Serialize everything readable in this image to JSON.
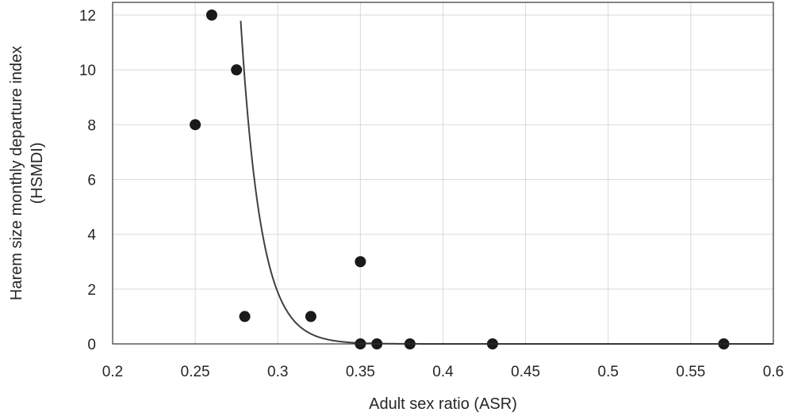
{
  "chart_data": {
    "type": "scatter",
    "title": "",
    "xlabel": "Adult sex ratio (ASR)",
    "ylabel_lines": [
      "Harem size monthly departure index",
      "(HSMDI)"
    ],
    "xlim": [
      0.2,
      0.6
    ],
    "ylim": [
      0,
      12.5
    ],
    "x_ticks": [
      0.2,
      0.25,
      0.3,
      0.35,
      0.4,
      0.45,
      0.5,
      0.55,
      0.6
    ],
    "x_tick_labels": [
      "0.2",
      "0.25",
      "0.3",
      "0.35",
      "0.4",
      "0.45",
      "0.5",
      "0.55",
      "0.6"
    ],
    "y_ticks": [
      0,
      2,
      4,
      6,
      8,
      10,
      12
    ],
    "y_tick_labels": [
      "0",
      "2",
      "4",
      "6",
      "8",
      "10",
      "12"
    ],
    "grid": true,
    "legend": "none",
    "series": [
      {
        "x": [
          0.25,
          0.26,
          0.275,
          0.28,
          0.32,
          0.35,
          0.35,
          0.36,
          0.38,
          0.43,
          0.57
        ],
        "y": [
          8,
          12,
          10,
          1,
          1,
          3,
          0,
          0,
          0,
          0,
          0
        ],
        "color": "#1a1a1a"
      }
    ],
    "trendline": {
      "type": "exponential",
      "a": 83000000000.0,
      "b": -81.7,
      "x_range": [
        0.2495,
        0.6
      ],
      "color": "#404040"
    }
  }
}
